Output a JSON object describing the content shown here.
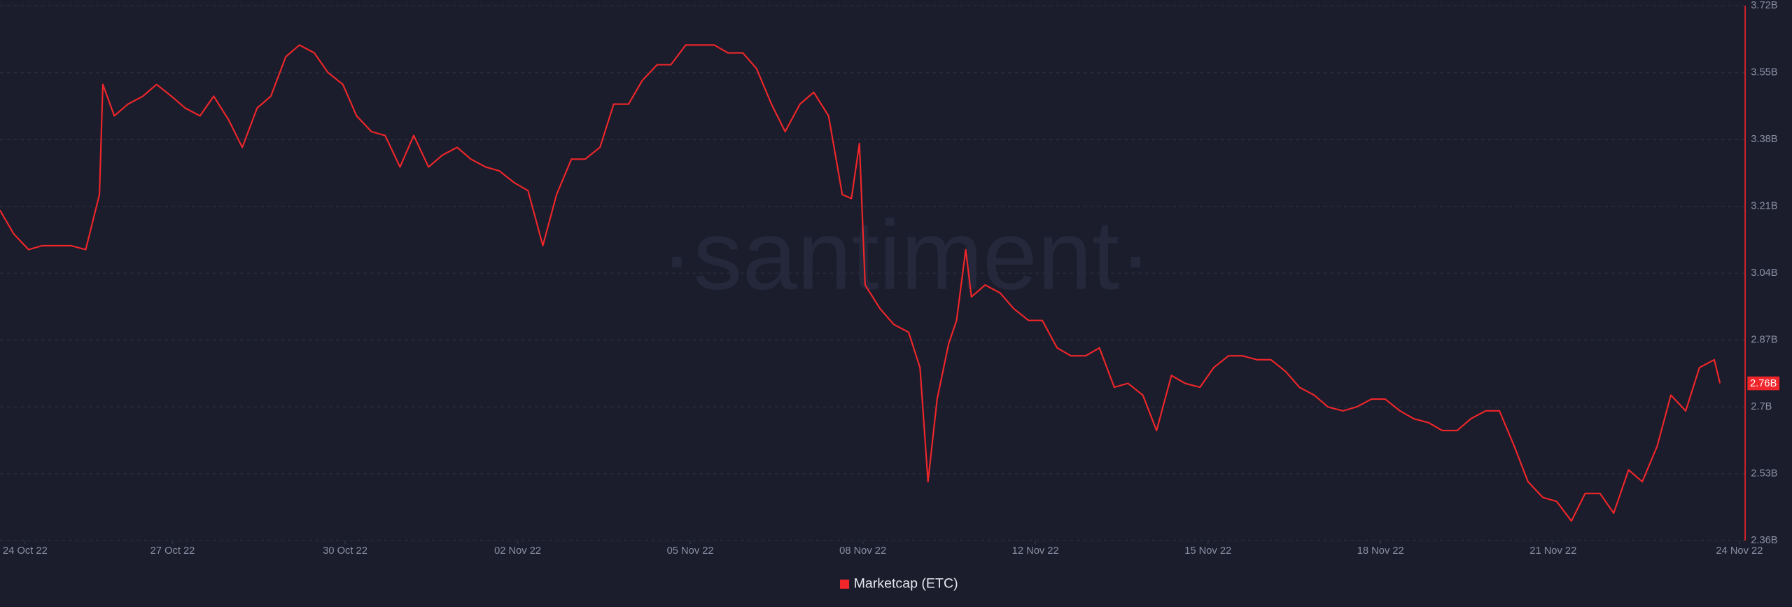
{
  "chart_data": {
    "type": "line",
    "watermark": "·santiment·",
    "legend": "bottom",
    "grid": true,
    "background": "#1b1d2c",
    "x": [
      0,
      0.24,
      0.5,
      0.74,
      1,
      1.24,
      1.5,
      1.74,
      1.8,
      2,
      2.24,
      2.5,
      2.74,
      3,
      3.24,
      3.5,
      3.74,
      4,
      4.24,
      4.5,
      4.74,
      5,
      5.24,
      5.5,
      5.74,
      6,
      6.24,
      6.5,
      6.74,
      7,
      7.24,
      7.5,
      7.74,
      8,
      8.24,
      8.5,
      8.74,
      9,
      9.24,
      9.5,
      9.74,
      10,
      10.24,
      10.5,
      10.74,
      11,
      11.24,
      11.5,
      11.74,
      12,
      12.24,
      12.5,
      12.74,
      13,
      13.24,
      13.5,
      13.74,
      14,
      14.24,
      14.5,
      14.74,
      14.9,
      15.04,
      15.14,
      15.4,
      15.64,
      15.9,
      16.1,
      16.24,
      16.4,
      16.6,
      16.74,
      16.9,
      17,
      17.24,
      17.5,
      17.74,
      18,
      18.24,
      18.5,
      18.74,
      19,
      19.24,
      19.5,
      19.74,
      20,
      20.24,
      20.5,
      20.74,
      21,
      21.24,
      21.5,
      21.74,
      22,
      22.24,
      22.5,
      22.74,
      23,
      23.24,
      23.5,
      23.74,
      24,
      24.24,
      24.5,
      24.74,
      25,
      25.24,
      25.5,
      25.74,
      26,
      26.24,
      26.5,
      26.74,
      27,
      27.24,
      27.5,
      27.74,
      28,
      28.24,
      28.5,
      28.74,
      29,
      29.24,
      29.5,
      29.74,
      30,
      30.1
    ],
    "series": [
      {
        "name": "Marketcap (ETC)",
        "color": "#f0262a",
        "axis": "y2",
        "values": [
          3.2,
          3.14,
          3.1,
          3.11,
          3.11,
          3.11,
          3.1,
          3.24,
          3.52,
          3.44,
          3.47,
          3.49,
          3.52,
          3.49,
          3.46,
          3.44,
          3.49,
          3.43,
          3.36,
          3.46,
          3.49,
          3.59,
          3.62,
          3.6,
          3.55,
          3.52,
          3.44,
          3.4,
          3.39,
          3.31,
          3.39,
          3.31,
          3.34,
          3.36,
          3.33,
          3.31,
          3.3,
          3.27,
          3.25,
          3.11,
          3.24,
          3.33,
          3.33,
          3.36,
          3.47,
          3.47,
          3.53,
          3.57,
          3.57,
          3.62,
          3.62,
          3.62,
          3.6,
          3.6,
          3.56,
          3.47,
          3.4,
          3.47,
          3.5,
          3.44,
          3.24,
          3.23,
          3.37,
          3.01,
          2.95,
          2.91,
          2.89,
          2.8,
          2.51,
          2.72,
          2.86,
          2.92,
          3.1,
          2.98,
          3.01,
          2.99,
          2.95,
          2.92,
          2.92,
          2.85,
          2.83,
          2.83,
          2.85,
          2.75,
          2.76,
          2.73,
          2.64,
          2.78,
          2.76,
          2.75,
          2.8,
          2.83,
          2.83,
          2.82,
          2.82,
          2.79,
          2.75,
          2.73,
          2.7,
          2.69,
          2.7,
          2.72,
          2.72,
          2.69,
          2.67,
          2.66,
          2.64,
          2.64,
          2.67,
          2.69,
          2.69,
          2.6,
          2.51,
          2.47,
          2.46,
          2.41,
          2.48,
          2.48,
          2.43,
          2.54,
          2.51,
          2.6,
          2.73,
          2.69,
          2.8,
          2.82,
          2.76
        ]
      }
    ],
    "current_value": {
      "value": 2.76,
      "label": "2.76B"
    },
    "xlim": [
      0,
      30.54
    ],
    "xticks": [
      {
        "value": 0.44,
        "label": "24 Oct 22"
      },
      {
        "value": 3.02,
        "label": "27 Oct 22"
      },
      {
        "value": 6.04,
        "label": "30 Oct 22"
      },
      {
        "value": 9.06,
        "label": "02 Nov 22"
      },
      {
        "value": 12.08,
        "label": "05 Nov 22"
      },
      {
        "value": 15.1,
        "label": "08 Nov 22"
      },
      {
        "value": 18.12,
        "label": "12 Nov 22"
      },
      {
        "value": 21.14,
        "label": "15 Nov 22"
      },
      {
        "value": 24.16,
        "label": "18 Nov 22"
      },
      {
        "value": 27.18,
        "label": "21 Nov 22"
      },
      {
        "value": 30.44,
        "label": "24 Nov 22"
      }
    ],
    "y2lim": [
      2.36,
      3.72
    ],
    "y2ticks": [
      {
        "value": 2.36,
        "label": "2.36B"
      },
      {
        "value": 2.53,
        "label": "2.53B"
      },
      {
        "value": 2.7,
        "label": "2.7B"
      },
      {
        "value": 2.87,
        "label": "2.87B"
      },
      {
        "value": 3.04,
        "label": "3.04B"
      },
      {
        "value": 3.21,
        "label": "3.21B"
      },
      {
        "value": 3.38,
        "label": "3.38B"
      },
      {
        "value": 3.55,
        "label": "3.55B"
      },
      {
        "value": 3.72,
        "label": "3.72B"
      }
    ]
  }
}
